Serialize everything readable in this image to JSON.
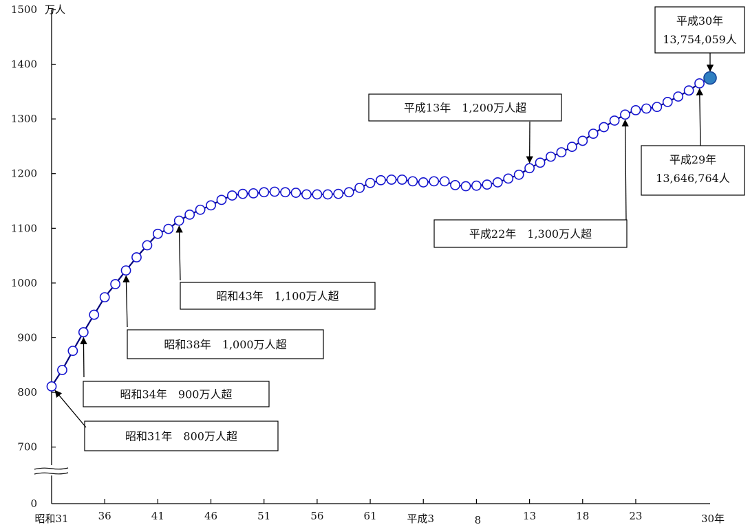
{
  "chart_data": {
    "type": "line",
    "unit_label": "万人",
    "x_end_label": "30年",
    "y_ticks": [
      {
        "value": 0,
        "label": "0"
      },
      {
        "value": 700,
        "label": "700"
      },
      {
        "value": 800,
        "label": "800"
      },
      {
        "value": 900,
        "label": "900"
      },
      {
        "value": 1000,
        "label": "1000"
      },
      {
        "value": 1100,
        "label": "1100"
      },
      {
        "value": 1200,
        "label": "1200"
      },
      {
        "value": 1300,
        "label": "1300"
      },
      {
        "value": 1400,
        "label": "1400"
      },
      {
        "value": 1500,
        "label": "1500"
      }
    ],
    "x_ticks": [
      {
        "year": 1956,
        "label": "昭和31"
      },
      {
        "year": 1961,
        "label": "36"
      },
      {
        "year": 1966,
        "label": "41"
      },
      {
        "year": 1971,
        "label": "46"
      },
      {
        "year": 1976,
        "label": "51"
      },
      {
        "year": 1981,
        "label": "56"
      },
      {
        "year": 1986,
        "label": "61"
      },
      {
        "year": 1991,
        "label": "平成3"
      },
      {
        "year": 1996,
        "label": "8"
      },
      {
        "year": 2001,
        "label": "13"
      },
      {
        "year": 2006,
        "label": "18"
      },
      {
        "year": 2011,
        "label": "23"
      },
      {
        "year": 2018,
        "label": "30年"
      }
    ],
    "x": [
      1956,
      1957,
      1958,
      1959,
      1960,
      1961,
      1962,
      1963,
      1964,
      1965,
      1966,
      1967,
      1968,
      1969,
      1970,
      1971,
      1972,
      1973,
      1974,
      1975,
      1976,
      1977,
      1978,
      1979,
      1980,
      1981,
      1982,
      1983,
      1984,
      1985,
      1986,
      1987,
      1988,
      1989,
      1990,
      1991,
      1992,
      1993,
      1994,
      1995,
      1996,
      1997,
      1998,
      1999,
      2000,
      2001,
      2002,
      2003,
      2004,
      2005,
      2006,
      2007,
      2008,
      2009,
      2010,
      2011,
      2012,
      2013,
      2014,
      2015,
      2016,
      2017,
      2018
    ],
    "series": [
      {
        "values": [
          811,
          841,
          876,
          910,
          942,
          974,
          998,
          1023,
          1047,
          1069,
          1090,
          1099,
          1114,
          1125,
          1134,
          1142,
          1152,
          1160,
          1163,
          1164,
          1166,
          1167,
          1166,
          1165,
          1162,
          1162,
          1162,
          1163,
          1166,
          1174,
          1183,
          1188,
          1189,
          1189,
          1186,
          1184,
          1186,
          1186,
          1179,
          1177,
          1178,
          1180,
          1184,
          1191,
          1198,
          1210,
          1220,
          1231,
          1239,
          1249,
          1260,
          1273,
          1285,
          1297,
          1308,
          1316,
          1319,
          1322,
          1331,
          1341,
          1352,
          1365,
          1375
        ]
      }
    ],
    "annotations": [
      {
        "text": "昭和31年　800万人超",
        "target_year": 1956
      },
      {
        "text": "昭和34年　900万人超",
        "target_year": 1959
      },
      {
        "text": "昭和38年　1,000万人超",
        "target_year": 1963
      },
      {
        "text": "昭和43年　1,100万人超",
        "target_year": 1968
      },
      {
        "text": "平成13年　1,200万人超",
        "target_year": 2001
      },
      {
        "text": "平成22年　1,300万人超",
        "target_year": 2010
      },
      {
        "text_lines": [
          "平成29年",
          "13,646,764人"
        ],
        "target_year": 2017
      },
      {
        "text_lines": [
          "平成30年",
          "13,754,059人"
        ],
        "target_year": 2018
      }
    ],
    "marker_colors": {
      "default": "#ffffff",
      "highlight": "#2f7fc1",
      "stroke": "#1515d0",
      "line": "#00007a"
    }
  }
}
